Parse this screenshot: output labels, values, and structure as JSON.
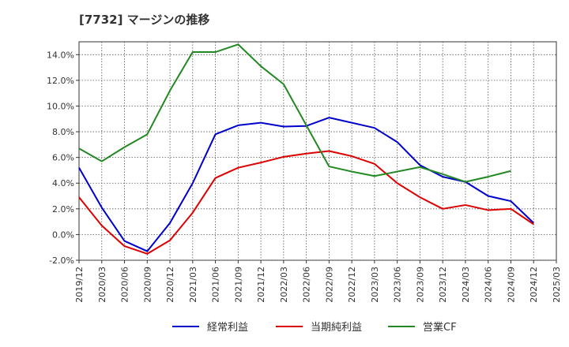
{
  "chart_data": {
    "type": "line",
    "title": "[7732]  マージンの推移",
    "xlabel": "",
    "ylabel": "",
    "ylim": [
      -2,
      15
    ],
    "yticks": [
      -2,
      0,
      2,
      4,
      6,
      8,
      10,
      12,
      14
    ],
    "ytick_labels": [
      "-2.0%",
      "0.0%",
      "2.0%",
      "4.0%",
      "6.0%",
      "8.0%",
      "10.0%",
      "12.0%",
      "14.0%"
    ],
    "grid": true,
    "legend_position": "bottom",
    "categories": [
      "2019/12",
      "2020/03",
      "2020/06",
      "2020/09",
      "2020/12",
      "2021/03",
      "2021/06",
      "2021/09",
      "2021/12",
      "2022/03",
      "2022/06",
      "2022/09",
      "2022/12",
      "2023/03",
      "2023/06",
      "2023/09",
      "2023/12",
      "2024/03",
      "2024/06",
      "2024/09",
      "2024/12",
      "2025/03"
    ],
    "series": [
      {
        "name": "経常利益",
        "color": "#0000cc",
        "values": [
          5.2,
          2.1,
          -0.5,
          -1.3,
          0.9,
          4.0,
          7.8,
          8.5,
          8.7,
          8.4,
          8.45,
          9.1,
          8.7,
          8.3,
          7.2,
          5.4,
          4.5,
          4.1,
          3.0,
          2.6,
          0.9,
          null
        ]
      },
      {
        "name": "当期純利益",
        "color": "#dd0000",
        "values": [
          2.9,
          0.7,
          -0.9,
          -1.5,
          -0.45,
          1.7,
          4.4,
          5.2,
          5.6,
          6.05,
          6.3,
          6.5,
          6.1,
          5.5,
          4.0,
          2.9,
          2.0,
          2.3,
          1.9,
          2.0,
          0.8,
          null
        ]
      },
      {
        "name": "営業CF",
        "color": "#228822",
        "values": [
          6.7,
          5.7,
          6.8,
          7.8,
          11.2,
          14.2,
          14.2,
          14.8,
          13.1,
          11.7,
          8.5,
          5.3,
          4.9,
          4.55,
          4.9,
          5.25,
          4.7,
          4.1,
          4.5,
          4.95,
          null,
          null
        ]
      }
    ]
  }
}
